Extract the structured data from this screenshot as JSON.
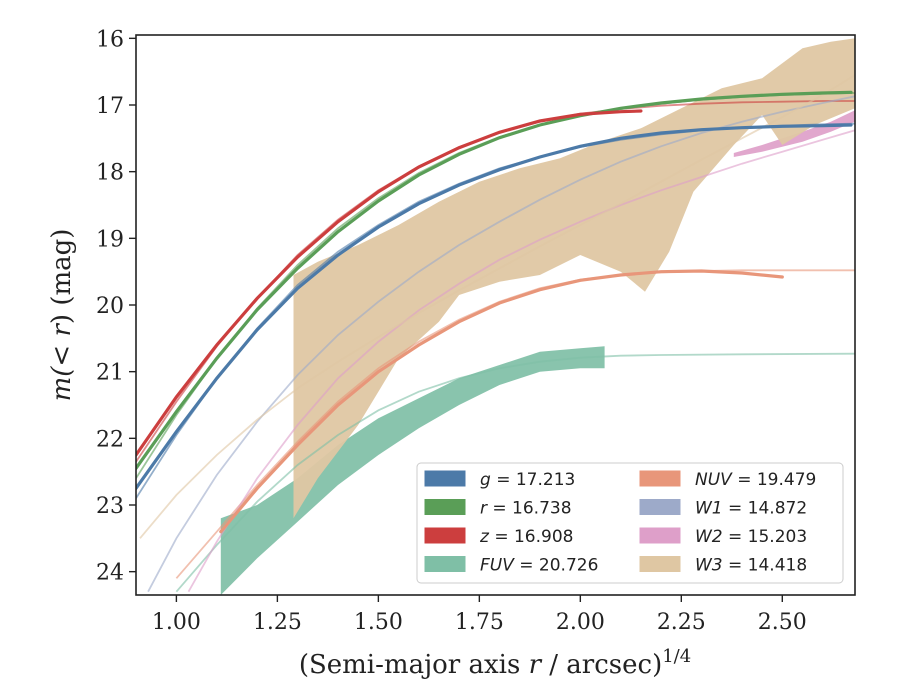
{
  "chart_data": {
    "type": "line",
    "xlabel_prefix": "(Semi-major axis ",
    "xlabel_var": "r",
    "xlabel_suffix": " / arcsec)",
    "xlabel_sup": "1/4",
    "ylabel_pre": "m(",
    "ylabel_lt": "< ",
    "ylabel_var": "r",
    "ylabel_post": ") (mag)",
    "xlim": [
      0.9,
      2.68
    ],
    "ylim": [
      24.35,
      15.95
    ],
    "y_inverted": true,
    "xticks": [
      1.0,
      1.25,
      1.5,
      1.75,
      2.0,
      2.25,
      2.5
    ],
    "xtick_labels": [
      "1.00",
      "1.25",
      "1.50",
      "1.75",
      "2.00",
      "2.25",
      "2.50"
    ],
    "yticks": [
      16,
      17,
      18,
      19,
      20,
      21,
      22,
      23,
      24
    ],
    "ytick_labels": [
      "16",
      "17",
      "18",
      "19",
      "20",
      "21",
      "22",
      "23",
      "24"
    ],
    "grid": false,
    "legend_position": "lower-right",
    "series": [
      {
        "key": "g",
        "label_var": "g",
        "label_value": " = 17.213",
        "color": "#4c7aa8",
        "legend_col": 0,
        "band_half": 0.05,
        "thin": [
          [
            0.9,
            22.9
          ],
          [
            1.0,
            21.95
          ],
          [
            1.1,
            21.1
          ],
          [
            1.2,
            20.35
          ],
          [
            1.3,
            19.7
          ],
          [
            1.4,
            19.2
          ],
          [
            1.5,
            18.8
          ],
          [
            1.6,
            18.45
          ],
          [
            1.7,
            18.18
          ],
          [
            1.8,
            17.95
          ],
          [
            1.9,
            17.78
          ],
          [
            2.0,
            17.63
          ],
          [
            2.1,
            17.52
          ],
          [
            2.2,
            17.44
          ],
          [
            2.3,
            17.38
          ],
          [
            2.4,
            17.34
          ],
          [
            2.5,
            17.31
          ],
          [
            2.6,
            17.29
          ],
          [
            2.68,
            17.28
          ]
        ],
        "bold": [
          [
            0.9,
            22.75
          ],
          [
            1.0,
            21.9
          ],
          [
            1.1,
            21.1
          ],
          [
            1.2,
            20.37
          ],
          [
            1.3,
            19.75
          ],
          [
            1.4,
            19.25
          ],
          [
            1.5,
            18.83
          ],
          [
            1.6,
            18.48
          ],
          [
            1.7,
            18.2
          ],
          [
            1.8,
            17.97
          ],
          [
            1.9,
            17.78
          ],
          [
            2.0,
            17.62
          ],
          [
            2.1,
            17.5
          ],
          [
            2.2,
            17.42
          ],
          [
            2.3,
            17.37
          ],
          [
            2.4,
            17.34
          ],
          [
            2.5,
            17.32
          ],
          [
            2.6,
            17.31
          ],
          [
            2.67,
            17.3
          ]
        ]
      },
      {
        "key": "r",
        "label_var": "r",
        "label_value": " = 16.738",
        "color": "#5a9e57",
        "legend_col": 0,
        "band_half": 0.05,
        "thin": [
          [
            0.9,
            22.6
          ],
          [
            1.0,
            21.65
          ],
          [
            1.1,
            20.8
          ],
          [
            1.2,
            20.05
          ],
          [
            1.3,
            19.4
          ],
          [
            1.4,
            18.85
          ],
          [
            1.5,
            18.4
          ],
          [
            1.6,
            18.02
          ],
          [
            1.7,
            17.72
          ],
          [
            1.8,
            17.48
          ],
          [
            1.9,
            17.3
          ],
          [
            2.0,
            17.16
          ],
          [
            2.1,
            17.06
          ],
          [
            2.2,
            16.98
          ],
          [
            2.3,
            16.92
          ],
          [
            2.4,
            16.88
          ],
          [
            2.5,
            16.85
          ],
          [
            2.6,
            16.83
          ],
          [
            2.68,
            16.82
          ]
        ],
        "bold": [
          [
            0.9,
            22.45
          ],
          [
            1.0,
            21.6
          ],
          [
            1.1,
            20.8
          ],
          [
            1.2,
            20.07
          ],
          [
            1.3,
            19.45
          ],
          [
            1.4,
            18.9
          ],
          [
            1.5,
            18.44
          ],
          [
            1.6,
            18.05
          ],
          [
            1.7,
            17.74
          ],
          [
            1.8,
            17.49
          ],
          [
            1.9,
            17.3
          ],
          [
            2.0,
            17.16
          ],
          [
            2.1,
            17.05
          ],
          [
            2.2,
            16.97
          ],
          [
            2.3,
            16.91
          ],
          [
            2.4,
            16.87
          ],
          [
            2.5,
            16.84
          ],
          [
            2.6,
            16.82
          ],
          [
            2.67,
            16.81
          ]
        ]
      },
      {
        "key": "z",
        "label_var": "z",
        "label_value": " = 16.908",
        "color": "#cc3e3e",
        "legend_col": 0,
        "band_half": 0.05,
        "thin": [
          [
            0.9,
            22.35
          ],
          [
            1.0,
            21.45
          ],
          [
            1.1,
            20.62
          ],
          [
            1.2,
            19.9
          ],
          [
            1.3,
            19.25
          ],
          [
            1.4,
            18.72
          ],
          [
            1.5,
            18.28
          ],
          [
            1.6,
            17.92
          ],
          [
            1.7,
            17.63
          ],
          [
            1.8,
            17.41
          ],
          [
            1.9,
            17.25
          ],
          [
            2.0,
            17.13
          ],
          [
            2.1,
            17.06
          ],
          [
            2.2,
            17.01
          ],
          [
            2.3,
            16.98
          ],
          [
            2.4,
            16.96
          ],
          [
            2.5,
            16.95
          ],
          [
            2.6,
            16.94
          ],
          [
            2.68,
            16.94
          ]
        ],
        "bold": [
          [
            0.9,
            22.25
          ],
          [
            1.0,
            21.38
          ],
          [
            1.1,
            20.6
          ],
          [
            1.2,
            19.9
          ],
          [
            1.3,
            19.28
          ],
          [
            1.4,
            18.75
          ],
          [
            1.5,
            18.3
          ],
          [
            1.6,
            17.93
          ],
          [
            1.7,
            17.64
          ],
          [
            1.8,
            17.41
          ],
          [
            1.9,
            17.24
          ],
          [
            2.0,
            17.14
          ],
          [
            2.1,
            17.1
          ],
          [
            2.15,
            17.09
          ]
        ]
      },
      {
        "key": "FUV",
        "label_var": "FUV",
        "label_value": " = 20.726",
        "color": "#7fbfa6",
        "legend_col": 0,
        "thin": [
          [
            1.0,
            24.3
          ],
          [
            1.1,
            23.6
          ],
          [
            1.2,
            22.95
          ],
          [
            1.3,
            22.4
          ],
          [
            1.4,
            21.95
          ],
          [
            1.5,
            21.58
          ],
          [
            1.6,
            21.3
          ],
          [
            1.7,
            21.1
          ],
          [
            1.8,
            20.95
          ],
          [
            1.9,
            20.85
          ],
          [
            2.0,
            20.79
          ],
          [
            2.1,
            20.76
          ],
          [
            2.2,
            20.75
          ],
          [
            2.4,
            20.74
          ],
          [
            2.68,
            20.73
          ]
        ],
        "band_upper": [
          [
            1.11,
            23.2
          ],
          [
            1.2,
            23.0
          ],
          [
            1.3,
            22.6
          ],
          [
            1.4,
            22.1
          ],
          [
            1.5,
            21.7
          ],
          [
            1.6,
            21.4
          ],
          [
            1.7,
            21.1
          ],
          [
            1.8,
            20.9
          ],
          [
            1.9,
            20.7
          ],
          [
            2.0,
            20.65
          ],
          [
            2.06,
            20.62
          ]
        ],
        "band_lower": [
          [
            1.11,
            24.35
          ],
          [
            1.2,
            23.8
          ],
          [
            1.3,
            23.25
          ],
          [
            1.4,
            22.7
          ],
          [
            1.5,
            22.25
          ],
          [
            1.6,
            21.85
          ],
          [
            1.7,
            21.5
          ],
          [
            1.8,
            21.2
          ],
          [
            1.9,
            21.0
          ],
          [
            2.0,
            20.95
          ],
          [
            2.06,
            20.95
          ]
        ]
      },
      {
        "key": "NUV",
        "label_var": "NUV",
        "label_value": " = 19.479",
        "color": "#e8967a",
        "legend_col": 1,
        "band_half": 0.05,
        "thin": [
          [
            1.0,
            24.1
          ],
          [
            1.1,
            23.4
          ],
          [
            1.2,
            22.7
          ],
          [
            1.3,
            22.05
          ],
          [
            1.4,
            21.45
          ],
          [
            1.5,
            20.95
          ],
          [
            1.6,
            20.55
          ],
          [
            1.7,
            20.22
          ],
          [
            1.8,
            19.95
          ],
          [
            1.9,
            19.75
          ],
          [
            2.0,
            19.62
          ],
          [
            2.1,
            19.55
          ],
          [
            2.2,
            19.51
          ],
          [
            2.3,
            19.49
          ],
          [
            2.4,
            19.48
          ],
          [
            2.5,
            19.48
          ],
          [
            2.68,
            19.48
          ]
        ],
        "bold": [
          [
            1.11,
            23.4
          ],
          [
            1.2,
            22.75
          ],
          [
            1.3,
            22.1
          ],
          [
            1.4,
            21.5
          ],
          [
            1.5,
            21.0
          ],
          [
            1.6,
            20.6
          ],
          [
            1.7,
            20.25
          ],
          [
            1.8,
            19.97
          ],
          [
            1.9,
            19.77
          ],
          [
            2.0,
            19.63
          ],
          [
            2.1,
            19.55
          ],
          [
            2.2,
            19.5
          ],
          [
            2.3,
            19.49
          ],
          [
            2.4,
            19.52
          ],
          [
            2.5,
            19.58
          ]
        ]
      },
      {
        "key": "W1",
        "label_var": "W1",
        "label_value": " = 14.872",
        "color": "#9daac9",
        "legend_col": 1,
        "thin": [
          [
            0.93,
            24.3
          ],
          [
            1.0,
            23.5
          ],
          [
            1.1,
            22.55
          ],
          [
            1.2,
            21.75
          ],
          [
            1.3,
            21.05
          ],
          [
            1.4,
            20.45
          ],
          [
            1.5,
            19.95
          ],
          [
            1.6,
            19.5
          ],
          [
            1.7,
            19.1
          ],
          [
            1.8,
            18.75
          ],
          [
            1.9,
            18.42
          ],
          [
            2.0,
            18.12
          ],
          [
            2.1,
            17.85
          ],
          [
            2.2,
            17.62
          ],
          [
            2.3,
            17.42
          ],
          [
            2.4,
            17.25
          ],
          [
            2.5,
            17.1
          ],
          [
            2.6,
            16.97
          ],
          [
            2.68,
            16.87
          ]
        ]
      },
      {
        "key": "W2",
        "label_var": "W2",
        "label_value": " = 15.203",
        "color": "#de9fc9",
        "legend_col": 1,
        "thin": [
          [
            1.03,
            24.3
          ],
          [
            1.1,
            23.55
          ],
          [
            1.2,
            22.6
          ],
          [
            1.3,
            21.8
          ],
          [
            1.4,
            21.1
          ],
          [
            1.5,
            20.55
          ],
          [
            1.6,
            20.08
          ],
          [
            1.7,
            19.68
          ],
          [
            1.8,
            19.32
          ],
          [
            1.9,
            19.02
          ],
          [
            2.0,
            18.75
          ],
          [
            2.1,
            18.5
          ],
          [
            2.2,
            18.28
          ],
          [
            2.3,
            18.08
          ],
          [
            2.4,
            17.88
          ],
          [
            2.5,
            17.7
          ],
          [
            2.6,
            17.52
          ],
          [
            2.68,
            17.38
          ]
        ],
        "band_upper": [
          [
            2.38,
            17.72
          ],
          [
            2.45,
            17.6
          ],
          [
            2.55,
            17.4
          ],
          [
            2.62,
            17.25
          ],
          [
            2.68,
            17.08
          ]
        ],
        "band_lower": [
          [
            2.38,
            17.78
          ],
          [
            2.45,
            17.7
          ],
          [
            2.55,
            17.55
          ],
          [
            2.62,
            17.4
          ],
          [
            2.68,
            17.25
          ]
        ]
      },
      {
        "key": "W3",
        "label_var": "W3",
        "label_value": " = 14.418",
        "color": "#dfc7a3",
        "legend_col": 1,
        "thin": [
          [
            0.91,
            23.5
          ],
          [
            1.0,
            22.85
          ],
          [
            1.1,
            22.25
          ],
          [
            1.2,
            21.72
          ],
          [
            1.3,
            21.25
          ],
          [
            1.4,
            20.85
          ],
          [
            1.5,
            20.48
          ],
          [
            1.6,
            20.12
          ],
          [
            1.7,
            19.78
          ],
          [
            1.8,
            19.45
          ],
          [
            1.9,
            19.12
          ],
          [
            2.0,
            18.8
          ],
          [
            2.1,
            18.48
          ],
          [
            2.2,
            18.15
          ],
          [
            2.3,
            17.82
          ],
          [
            2.4,
            17.5
          ],
          [
            2.5,
            17.18
          ],
          [
            2.6,
            16.85
          ],
          [
            2.68,
            16.55
          ]
        ],
        "band_upper": [
          [
            1.29,
            19.55
          ],
          [
            1.35,
            19.35
          ],
          [
            1.45,
            19.1
          ],
          [
            1.55,
            18.8
          ],
          [
            1.65,
            18.45
          ],
          [
            1.75,
            18.15
          ],
          [
            1.85,
            17.95
          ],
          [
            1.95,
            17.8
          ],
          [
            2.05,
            17.55
          ],
          [
            2.15,
            17.35
          ],
          [
            2.25,
            17.05
          ],
          [
            2.35,
            16.75
          ],
          [
            2.45,
            16.6
          ],
          [
            2.55,
            16.15
          ],
          [
            2.62,
            16.05
          ],
          [
            2.68,
            16.0
          ]
        ],
        "band_lower": [
          [
            1.29,
            23.2
          ],
          [
            1.35,
            22.6
          ],
          [
            1.45,
            21.8
          ],
          [
            1.55,
            20.8
          ],
          [
            1.65,
            20.25
          ],
          [
            1.7,
            19.85
          ],
          [
            1.8,
            19.65
          ],
          [
            1.9,
            19.55
          ],
          [
            2.0,
            19.25
          ],
          [
            2.1,
            19.5
          ],
          [
            2.16,
            19.8
          ],
          [
            2.22,
            19.2
          ],
          [
            2.28,
            18.3
          ],
          [
            2.38,
            17.6
          ],
          [
            2.45,
            17.15
          ],
          [
            2.5,
            17.6
          ],
          [
            2.58,
            17.3
          ],
          [
            2.68,
            17.05
          ]
        ]
      }
    ]
  }
}
